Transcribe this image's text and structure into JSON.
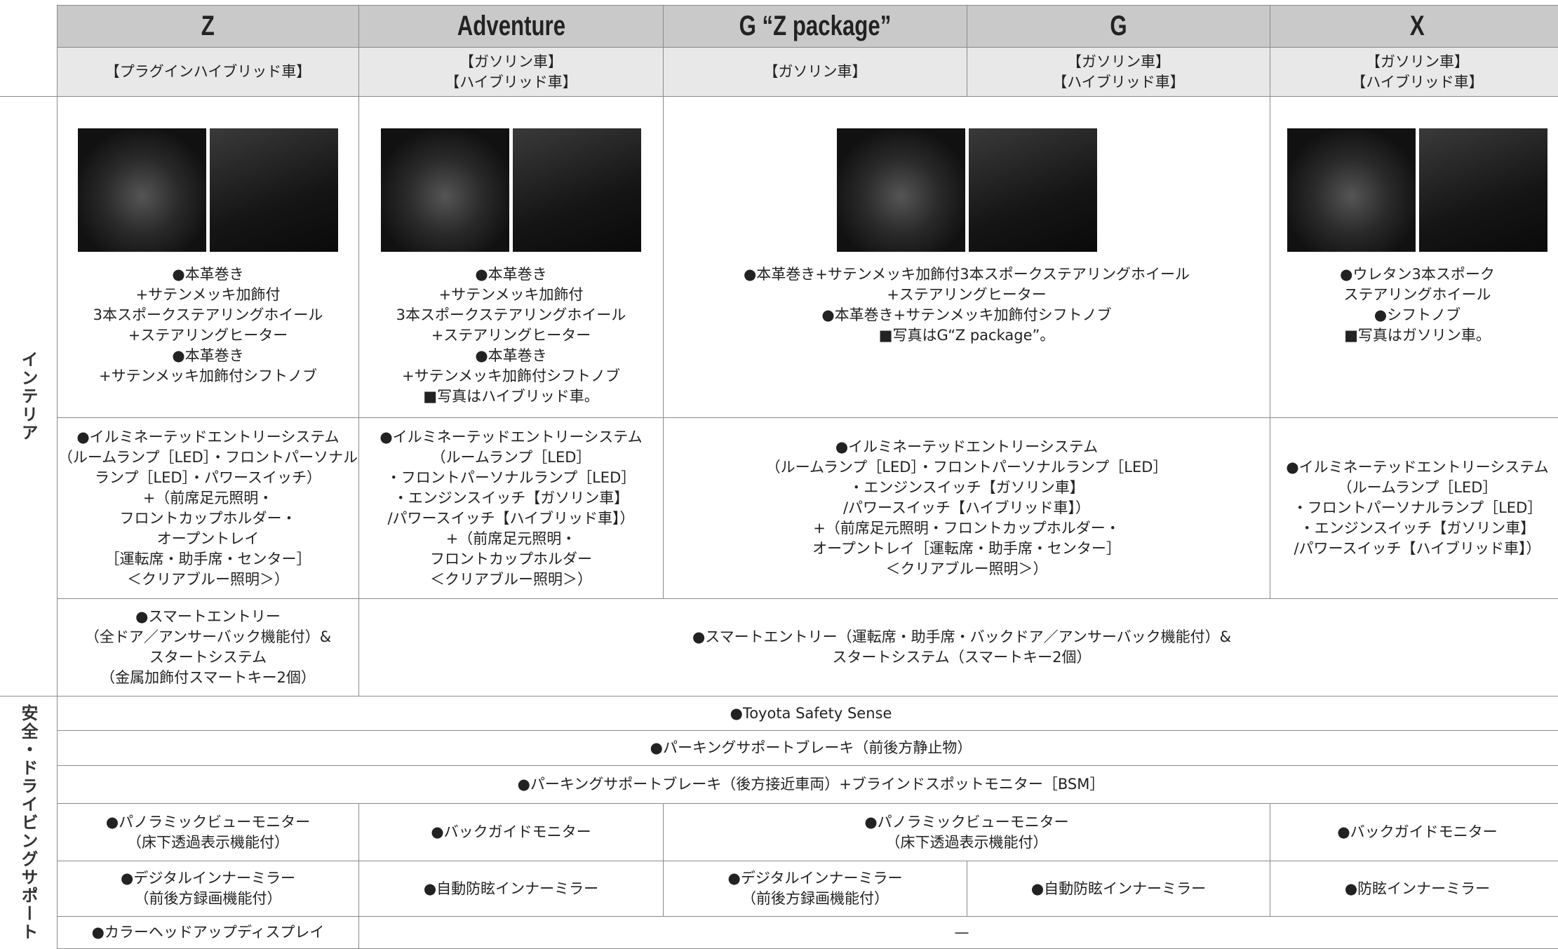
{
  "header": {
    "columns": [
      {
        "name": "Z",
        "types": [
          "【プラグインハイブリッド車】"
        ]
      },
      {
        "name": "Adventure",
        "types": [
          "【ガソリン車】",
          "【ハイブリッド車】"
        ]
      },
      {
        "name": "G “Z package”",
        "types": [
          "【ガソリン車】"
        ]
      },
      {
        "name": "G",
        "types": [
          "【ガソリン車】",
          "【ハイブリッド車】"
        ]
      },
      {
        "name": "X",
        "types": [
          "【ガソリン車】",
          "【ハイブリッド車】"
        ]
      }
    ]
  },
  "sections": [
    {
      "label": "インテリア",
      "rows": [
        {
          "cells": [
            {
              "lines": [
                "●本革巻き",
                "+サテンメッキ加飾付",
                "3本スポークステアリングホイール",
                "+ステアリングヒーター",
                "●本革巻き",
                "+サテンメッキ加飾付シフトノブ"
              ]
            },
            {
              "lines": [
                "●本革巻き",
                "+サテンメッキ加飾付",
                "3本スポークステアリングホイール",
                "+ステアリングヒーター",
                "●本革巻き",
                "+サテンメッキ加飾付シフトノブ",
                "■写真はハイブリッド車。"
              ]
            },
            {
              "lines": [
                "●本革巻き+サテンメッキ加飾付3本スポークステアリングホイール",
                "+ステアリングヒーター",
                "●本革巻き+サテンメッキ加飾付シフトノブ",
                "■写真はG“Z package”。"
              ]
            },
            {
              "lines": [
                "●ウレタン3本スポーク",
                "ステアリングホイール",
                "●シフトノブ",
                "■写真はガソリン車。"
              ]
            }
          ]
        },
        {
          "cells": [
            {
              "lines": [
                "●イルミネーテッドエントリーシステム",
                "（ルームランプ［LED］・フロントパーソナル",
                "ランプ［LED］・パワースイッチ）",
                "+（前席足元照明・",
                "フロントカップホルダー・",
                "オープントレイ",
                "［運転席・助手席・センター］",
                "＜クリアブルー照明＞）"
              ]
            },
            {
              "lines": [
                "●イルミネーテッドエントリーシステム",
                "（ルームランプ［LED］",
                "・フロントパーソナルランプ［LED］",
                "・エンジンスイッチ【ガソリン車】",
                "/パワースイッチ【ハイブリッド車】）",
                "+（前席足元照明・",
                "フロントカップホルダー",
                "＜クリアブルー照明＞）"
              ]
            },
            {
              "lines": [
                "●イルミネーテッドエントリーシステム",
                "（ルームランプ［LED］・フロントパーソナルランプ［LED］",
                "・エンジンスイッチ【ガソリン車】",
                "/パワースイッチ【ハイブリッド車】）",
                "+（前席足元照明・フロントカップホルダー・",
                "オープントレイ［運転席・助手席・センター］",
                "＜クリアブルー照明＞）"
              ]
            },
            {
              "lines": [
                "●イルミネーテッドエントリーシステム",
                "（ルームランプ［LED］",
                "・フロントパーソナルランプ［LED］",
                "・エンジンスイッチ【ガソリン車】",
                "/パワースイッチ【ハイブリッド車】）"
              ]
            }
          ]
        },
        {
          "cells": [
            {
              "lines": [
                "●スマートエントリー",
                "（全ドア／アンサーバック機能付）&",
                "スタートシステム",
                "（金属加飾付スマートキー2個）"
              ]
            },
            {
              "lines": [
                "●スマートエントリー（運転席・助手席・バックドア／アンサーバック機能付）&",
                "スタートシステム（スマートキー2個）"
              ]
            }
          ]
        }
      ]
    },
    {
      "label": "安全・ドライビングサポート",
      "rows": [
        {
          "cells": [
            {
              "lines": [
                "●Toyota Safety Sense"
              ]
            }
          ]
        },
        {
          "cells": [
            {
              "lines": [
                "●パーキングサポートブレーキ（前後方静止物）"
              ]
            }
          ]
        },
        {
          "cells": [
            {
              "lines": [
                "●パーキングサポートブレーキ（後方接近車両）+ブラインドスポットモニター［BSM］"
              ]
            }
          ]
        },
        {
          "cells": [
            {
              "lines": [
                "●パノラミックビューモニター",
                "（床下透過表示機能付）"
              ]
            },
            {
              "lines": [
                "●バックガイドモニター"
              ]
            },
            {
              "lines": [
                "●パノラミックビューモニター",
                "（床下透過表示機能付）"
              ]
            },
            {
              "lines": [
                "●バックガイドモニター"
              ]
            }
          ]
        },
        {
          "cells": [
            {
              "lines": [
                "●デジタルインナーミラー",
                "（前後方録画機能付）"
              ]
            },
            {
              "lines": [
                "●自動防眩インナーミラー"
              ]
            },
            {
              "lines": [
                "●デジタルインナーミラー",
                "（前後方録画機能付）"
              ]
            },
            {
              "lines": [
                "●自動防眩インナーミラー"
              ]
            },
            {
              "lines": [
                "●防眩インナーミラー"
              ]
            }
          ]
        },
        {
          "cells": [
            {
              "lines": [
                "●カラーヘッドアップディスプレイ"
              ]
            },
            {
              "lines": [
                "—"
              ]
            }
          ]
        }
      ]
    }
  ]
}
